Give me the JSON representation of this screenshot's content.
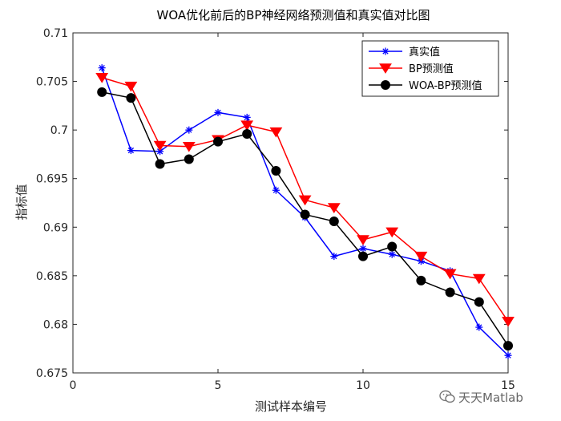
{
  "chart_data": {
    "type": "line",
    "title": "WOA优化前后的BP神经网络预测值和真实值对比图",
    "xlabel": "测试样本编号",
    "ylabel": "指标值",
    "xlim": [
      0,
      15
    ],
    "ylim": [
      0.675,
      0.71
    ],
    "xticks": [
      0,
      5,
      10,
      15
    ],
    "yticks": [
      0.675,
      0.68,
      0.685,
      0.69,
      0.695,
      0.7,
      0.705,
      0.71
    ],
    "ytick_labels": [
      "0.675",
      "0.68",
      "0.685",
      "0.69",
      "0.695",
      "0.7",
      "0.705",
      "0.71"
    ],
    "grid": false,
    "legend_position": "top-right",
    "x": [
      1,
      2,
      3,
      4,
      5,
      6,
      7,
      8,
      9,
      10,
      11,
      12,
      13,
      14,
      15
    ],
    "series": [
      {
        "name": "真实值",
        "color": "#0000ff",
        "marker": "asterisk",
        "values": [
          0.7064,
          0.6979,
          0.6978,
          0.7,
          0.7018,
          0.7013,
          0.6938,
          0.691,
          0.687,
          0.6878,
          0.6872,
          0.6865,
          0.6855,
          0.6797,
          0.6768
        ]
      },
      {
        "name": "BP预测值",
        "color": "#ff0000",
        "marker": "triangle-down",
        "values": [
          0.7054,
          0.7045,
          0.6984,
          0.6983,
          0.699,
          0.7005,
          0.6998,
          0.6928,
          0.692,
          0.6887,
          0.6895,
          0.687,
          0.6852,
          0.6847,
          0.6803
        ]
      },
      {
        "name": "WOA-BP预测值",
        "color": "#000000",
        "marker": "circle",
        "values": [
          0.7039,
          0.7033,
          0.6965,
          0.697,
          0.6988,
          0.6996,
          0.6958,
          0.6913,
          0.6906,
          0.687,
          0.688,
          0.6845,
          0.6833,
          0.6823,
          0.6778
        ]
      }
    ]
  },
  "watermark": {
    "text": "天天Matlab",
    "icon": "wechat-icon"
  }
}
